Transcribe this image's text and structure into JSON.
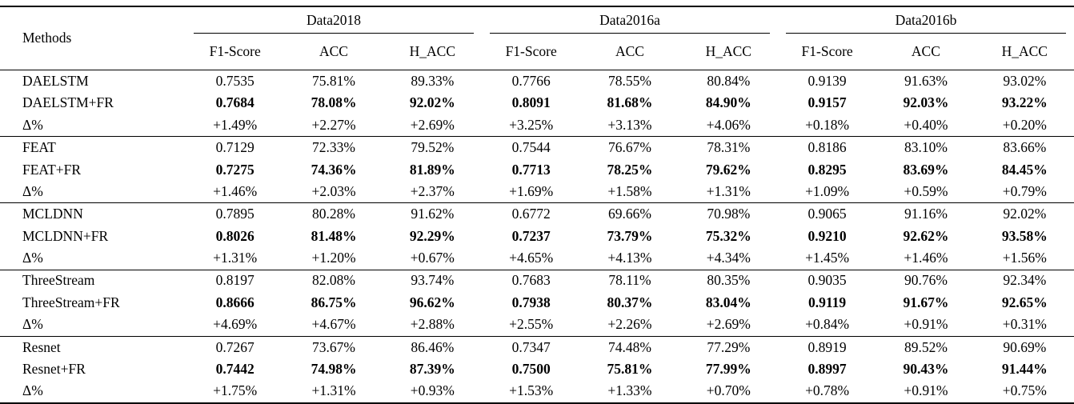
{
  "page": {
    "background_color": "#ffffff",
    "text_color": "#000000",
    "rule_color": "#000000"
  },
  "table": {
    "methods_header": "Methods",
    "column_groups": [
      "Data2018",
      "Data2016a",
      "Data2016b"
    ],
    "sub_headers": [
      "F1-Score",
      "ACC",
      "H_ACC"
    ],
    "groups": [
      {
        "rows": [
          {
            "method": "DAELSTM",
            "bold_values": false,
            "values": [
              "0.7535",
              "75.81%",
              "89.33%",
              "0.7766",
              "78.55%",
              "80.84%",
              "0.9139",
              "91.63%",
              "93.02%"
            ]
          },
          {
            "method": "DAELSTM+FR",
            "bold_values": true,
            "values": [
              "0.7684",
              "78.08%",
              "92.02%",
              "0.8091",
              "81.68%",
              "84.90%",
              "0.9157",
              "92.03%",
              "93.22%"
            ]
          },
          {
            "method": "Δ%",
            "bold_values": false,
            "values": [
              "+1.49%",
              "+2.27%",
              "+2.69%",
              "+3.25%",
              "+3.13%",
              "+4.06%",
              "+0.18%",
              "+0.40%",
              "+0.20%"
            ]
          }
        ]
      },
      {
        "rows": [
          {
            "method": "FEAT",
            "bold_values": false,
            "values": [
              "0.7129",
              "72.33%",
              "79.52%",
              "0.7544",
              "76.67%",
              "78.31%",
              "0.8186",
              "83.10%",
              "83.66%"
            ]
          },
          {
            "method": "FEAT+FR",
            "bold_values": true,
            "values": [
              "0.7275",
              "74.36%",
              "81.89%",
              "0.7713",
              "78.25%",
              "79.62%",
              "0.8295",
              "83.69%",
              "84.45%"
            ]
          },
          {
            "method": "Δ%",
            "bold_values": false,
            "values": [
              "+1.46%",
              "+2.03%",
              "+2.37%",
              "+1.69%",
              "+1.58%",
              "+1.31%",
              "+1.09%",
              "+0.59%",
              "+0.79%"
            ]
          }
        ]
      },
      {
        "rows": [
          {
            "method": "MCLDNN",
            "bold_values": false,
            "values": [
              "0.7895",
              "80.28%",
              "91.62%",
              "0.6772",
              "69.66%",
              "70.98%",
              "0.9065",
              "91.16%",
              "92.02%"
            ]
          },
          {
            "method": "MCLDNN+FR",
            "bold_values": true,
            "values": [
              "0.8026",
              "81.48%",
              "92.29%",
              "0.7237",
              "73.79%",
              "75.32%",
              "0.9210",
              "92.62%",
              "93.58%"
            ]
          },
          {
            "method": "Δ%",
            "bold_values": false,
            "values": [
              "+1.31%",
              "+1.20%",
              "+0.67%",
              "+4.65%",
              "+4.13%",
              "+4.34%",
              "+1.45%",
              "+1.46%",
              "+1.56%"
            ]
          }
        ]
      },
      {
        "rows": [
          {
            "method": "ThreeStream",
            "bold_values": false,
            "values": [
              "0.8197",
              "82.08%",
              "93.74%",
              "0.7683",
              "78.11%",
              "80.35%",
              "0.9035",
              "90.76%",
              "92.34%"
            ]
          },
          {
            "method": "ThreeStream+FR",
            "bold_values": true,
            "values": [
              "0.8666",
              "86.75%",
              "96.62%",
              "0.7938",
              "80.37%",
              "83.04%",
              "0.9119",
              "91.67%",
              "92.65%"
            ]
          },
          {
            "method": "Δ%",
            "bold_values": false,
            "values": [
              "+4.69%",
              "+4.67%",
              "+2.88%",
              "+2.55%",
              "+2.26%",
              "+2.69%",
              "+0.84%",
              "+0.91%",
              "+0.31%"
            ]
          }
        ]
      },
      {
        "rows": [
          {
            "method": "Resnet",
            "bold_values": false,
            "values": [
              "0.7267",
              "73.67%",
              "86.46%",
              "0.7347",
              "74.48%",
              "77.29%",
              "0.8919",
              "89.52%",
              "90.69%"
            ]
          },
          {
            "method": "Resnet+FR",
            "bold_values": true,
            "values": [
              "0.7442",
              "74.98%",
              "87.39%",
              "0.7500",
              "75.81%",
              "77.99%",
              "0.8997",
              "90.43%",
              "91.44%"
            ]
          },
          {
            "method": "Δ%",
            "bold_values": false,
            "values": [
              "+1.75%",
              "+1.31%",
              "+0.93%",
              "+1.53%",
              "+1.33%",
              "+0.70%",
              "+0.78%",
              "+0.91%",
              "+0.75%"
            ]
          }
        ]
      }
    ]
  }
}
